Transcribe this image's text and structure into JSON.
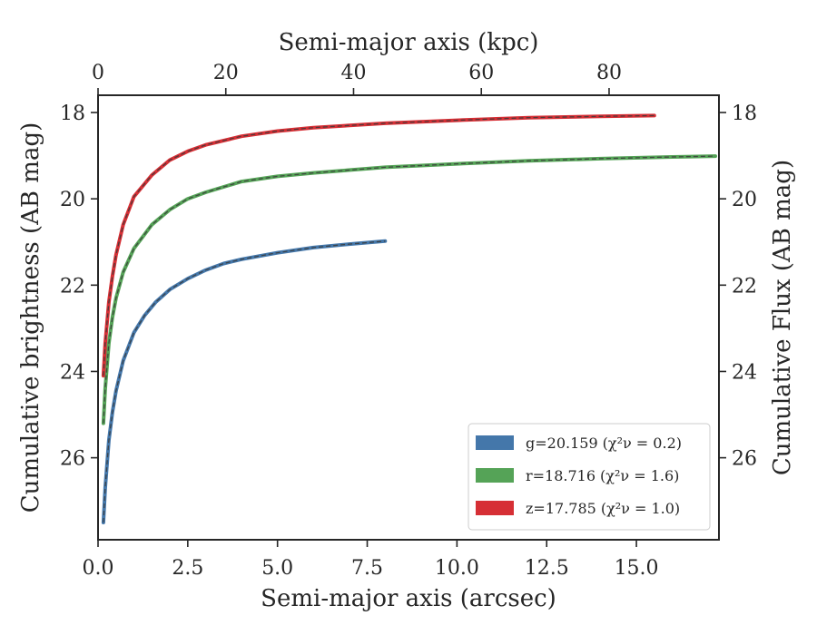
{
  "chart_data": {
    "type": "line",
    "bottom_axis": {
      "label": "Semi-major axis (arcsec)",
      "range": [
        0,
        17.3
      ],
      "ticks": [
        0.0,
        2.5,
        5.0,
        7.5,
        10.0,
        12.5,
        15.0
      ],
      "tick_labels": [
        "0.0",
        "2.5",
        "5.0",
        "7.5",
        "10.0",
        "12.5",
        "15.0"
      ]
    },
    "top_axis": {
      "label": "Semi-major axis (kpc)",
      "range": [
        0,
        97.2
      ],
      "ticks": [
        0,
        20,
        40,
        60,
        80
      ],
      "tick_labels": [
        "0",
        "20",
        "40",
        "60",
        "80"
      ]
    },
    "left_axis": {
      "label": "Cumulative brightness (AB mag)",
      "range": [
        27.9,
        17.6
      ],
      "inverted": true,
      "ticks": [
        18,
        20,
        22,
        24,
        26
      ],
      "tick_labels": [
        "18",
        "20",
        "22",
        "24",
        "26"
      ]
    },
    "right_axis": {
      "label": "Cumulative Flux (AB mag)",
      "range": [
        27.9,
        17.6
      ],
      "inverted": true,
      "ticks": [
        18,
        20,
        22,
        24,
        26
      ],
      "tick_labels": [
        "18",
        "20",
        "22",
        "24",
        "26"
      ]
    },
    "grid": false,
    "legend_position": "lower-right",
    "series": [
      {
        "name": "g=20.159",
        "chi_label": "(χ²ν = 0.2)",
        "color": "#4477aa",
        "x": [
          0.15,
          0.2,
          0.3,
          0.4,
          0.5,
          0.7,
          1.0,
          1.3,
          1.6,
          2.0,
          2.5,
          3.0,
          3.5,
          4.0,
          5.0,
          6.0,
          7.0,
          8.0
        ],
        "mag": [
          27.5,
          26.7,
          25.6,
          24.95,
          24.45,
          23.75,
          23.1,
          22.7,
          22.4,
          22.1,
          21.85,
          21.65,
          21.5,
          21.4,
          21.25,
          21.13,
          21.05,
          20.98
        ]
      },
      {
        "name": "r=18.716",
        "chi_label": "(χ²ν = 1.6)",
        "color": "#55a357",
        "x": [
          0.15,
          0.2,
          0.3,
          0.4,
          0.5,
          0.7,
          1.0,
          1.5,
          2.0,
          2.5,
          3.0,
          4.0,
          5.0,
          6.0,
          8.0,
          10.0,
          12.0,
          14.0,
          16.0,
          17.2
        ],
        "mag": [
          25.2,
          24.4,
          23.35,
          22.75,
          22.3,
          21.7,
          21.15,
          20.6,
          20.25,
          20.0,
          19.85,
          19.6,
          19.48,
          19.4,
          19.27,
          19.19,
          19.12,
          19.07,
          19.03,
          19.01
        ]
      },
      {
        "name": "z=17.785",
        "chi_label": "(χ²ν = 1.0)",
        "color": "#d62f35",
        "x": [
          0.15,
          0.2,
          0.3,
          0.4,
          0.5,
          0.7,
          1.0,
          1.5,
          2.0,
          2.5,
          3.0,
          4.0,
          5.0,
          6.0,
          8.0,
          10.0,
          12.0,
          14.0,
          15.5
        ],
        "mag": [
          24.1,
          23.35,
          22.4,
          21.8,
          21.3,
          20.6,
          19.95,
          19.45,
          19.1,
          18.9,
          18.75,
          18.55,
          18.43,
          18.35,
          18.25,
          18.18,
          18.12,
          18.09,
          18.07
        ]
      }
    ]
  }
}
